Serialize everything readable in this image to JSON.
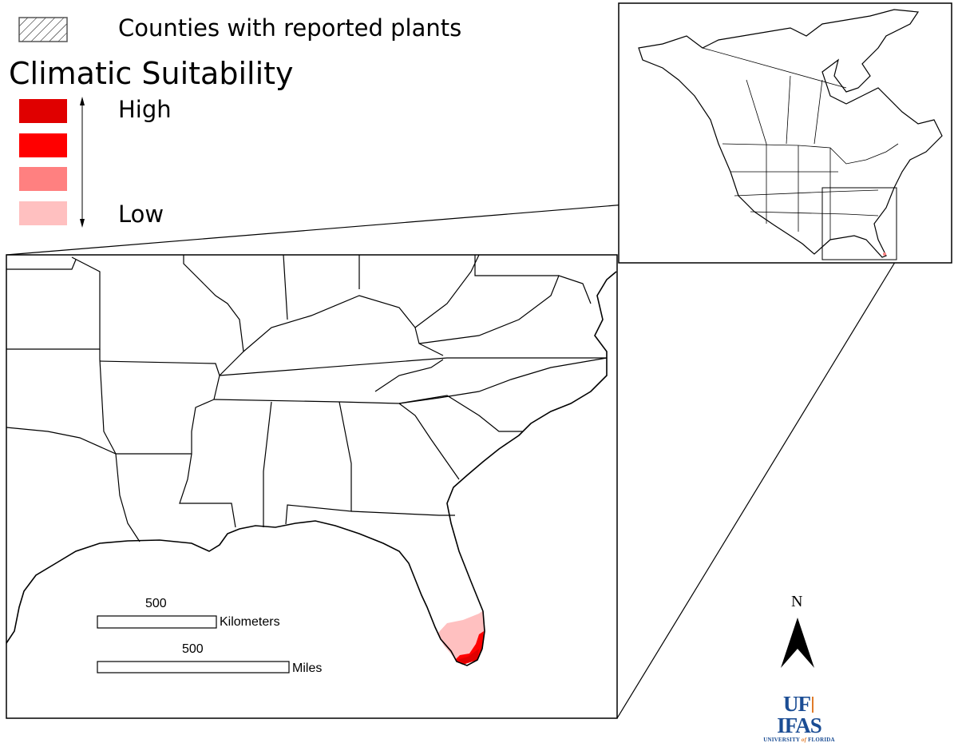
{
  "legend": {
    "hatch_label": "Counties with reported plants",
    "title": "Climatic Suitability",
    "high_label": "High",
    "low_label": "Low",
    "colors": [
      "#e00000",
      "#ff0000",
      "#ff8080",
      "#ffc0c0"
    ]
  },
  "scale_bars": {
    "km_value": "500",
    "km_unit": "Kilometers",
    "mi_value": "500",
    "mi_unit": "Miles"
  },
  "north_arrow": {
    "label": "N"
  },
  "logo": {
    "uf": "UF",
    "ifas": "IFAS",
    "subtitle_a": "UNIVERSITY ",
    "subtitle_of": "of",
    "subtitle_b": " FLORIDA",
    "blue": "#1b4d94",
    "orange": "#e07b2a"
  }
}
